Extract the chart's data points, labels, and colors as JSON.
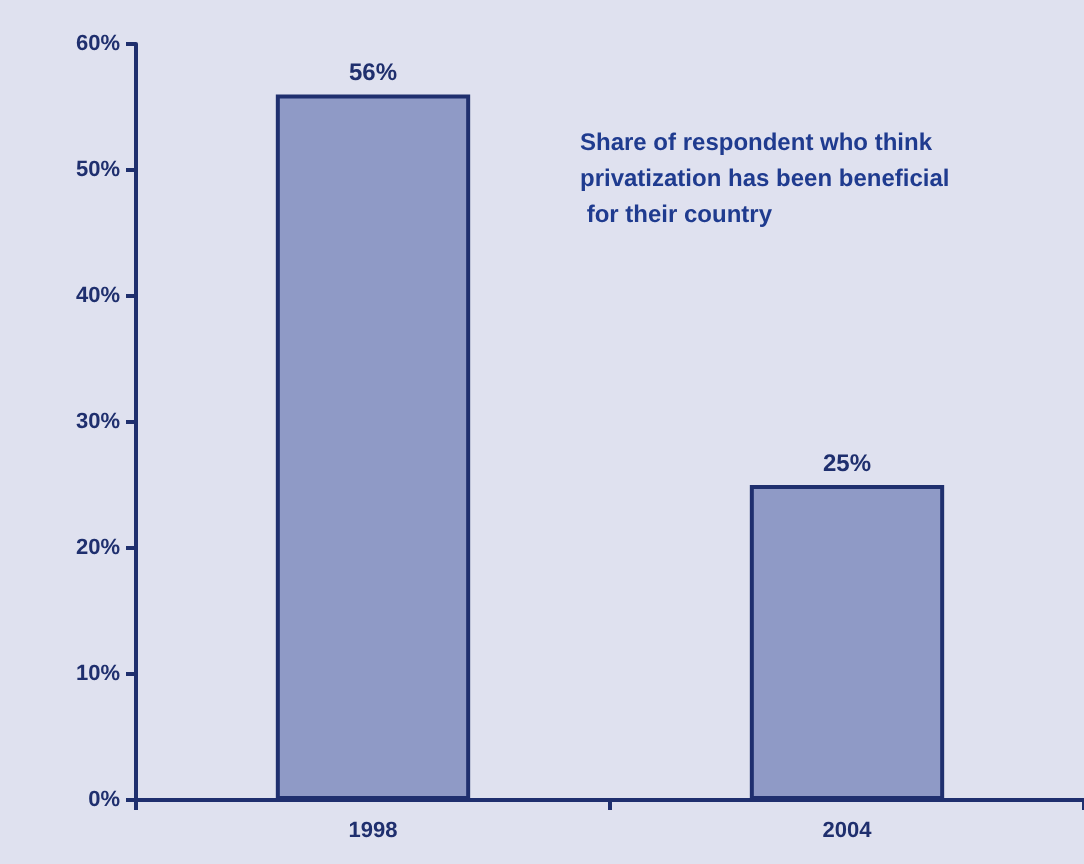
{
  "chart_data": {
    "type": "bar",
    "categories": [
      "1998",
      "2004"
    ],
    "values": [
      56,
      25
    ],
    "color": "#8f9ac6",
    "value_labels": [
      "56%",
      "25%"
    ],
    "ylim": [
      0,
      60
    ],
    "yticks": [
      {
        "value": 0,
        "label": "0%"
      },
      {
        "value": 10,
        "label": "10%"
      },
      {
        "value": 20,
        "label": "20%"
      },
      {
        "value": 30,
        "label": "30%"
      },
      {
        "value": 40,
        "label": "40%"
      },
      {
        "value": 50,
        "label": "50%"
      },
      {
        "value": 60,
        "label": "60%"
      }
    ],
    "annotations": [
      "Share of respondent who think privatization has been beneficial for their country"
    ]
  }
}
